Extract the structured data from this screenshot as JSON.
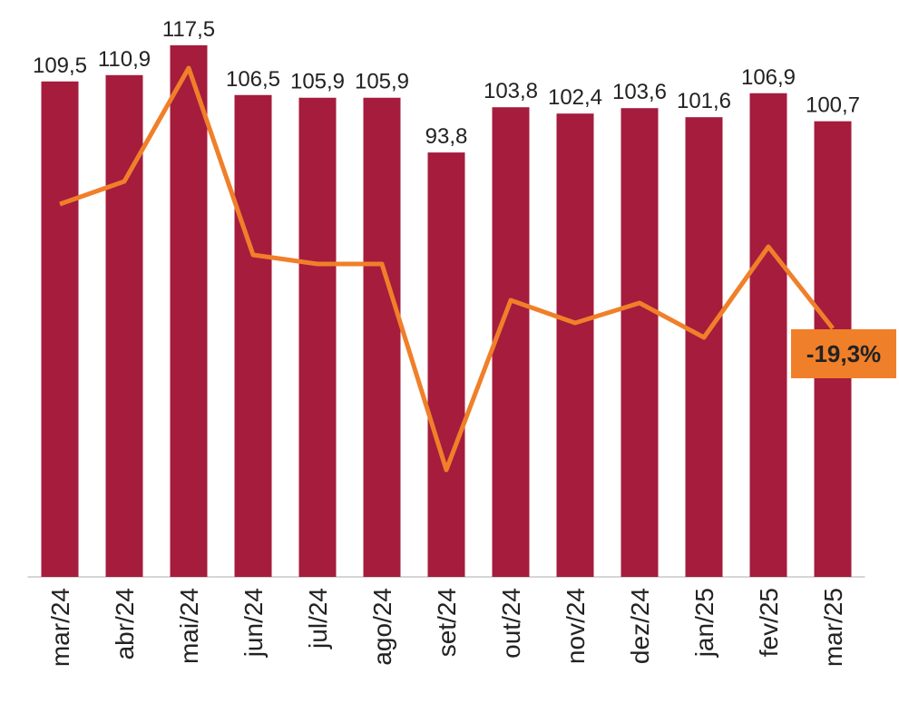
{
  "chart_data": {
    "type": "bar_line",
    "categories": [
      "mar/24",
      "abr/24",
      "mai/24",
      "jun/24",
      "jul/24",
      "ago/24",
      "set/24",
      "out/24",
      "nov/24",
      "dez/24",
      "jan/25",
      "fev/25",
      "mar/25"
    ],
    "series": [
      {
        "type": "bar",
        "color": "#a51c3c",
        "values": [
          109.5,
          110.9,
          117.5,
          106.5,
          105.9,
          105.9,
          93.8,
          103.8,
          102.4,
          103.6,
          101.6,
          106.9,
          100.7
        ],
        "value_labels": [
          "109,5",
          "110,9",
          "117,5",
          "106,5",
          "105,9",
          "105,9",
          "93,8",
          "103,8",
          "102,4",
          "103,6",
          "101,6",
          "106,9",
          "100,7"
        ]
      },
      {
        "type": "line",
        "color": "#f07f2a",
        "axis": "y2",
        "values": [
          -5.6,
          -3.1,
          9.4,
          -11.2,
          -12.2,
          -12.2,
          -34.9,
          -16.2,
          -18.7,
          -16.5,
          -20.3,
          -10.3,
          -19.3
        ],
        "value_labels": [
          null,
          null,
          null,
          null,
          null,
          null,
          null,
          null,
          null,
          null,
          null,
          null,
          "-19,3%"
        ]
      }
    ],
    "ylim": [
      0,
      127.5
    ],
    "y2lim": [
      -46.7,
      16.9
    ]
  }
}
